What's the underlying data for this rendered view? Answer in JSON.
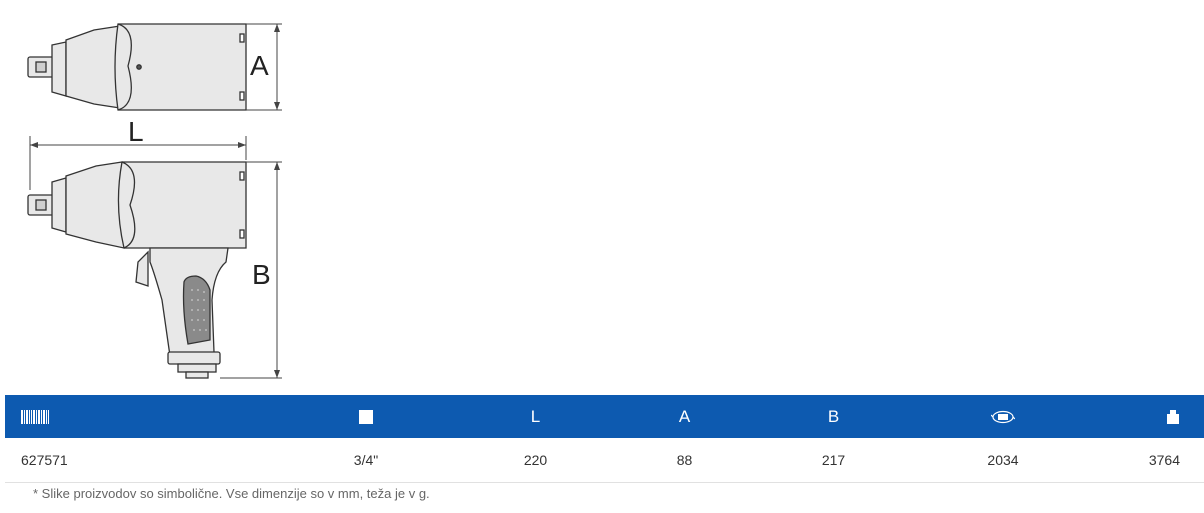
{
  "drawing": {
    "dim_a": "A",
    "dim_l": "L",
    "dim_b": "B"
  },
  "table": {
    "header_icons": [
      "barcode-icon",
      "square-drive-icon",
      "",
      "",
      "",
      "torque-nm-icon",
      "weight-icon"
    ],
    "headers": [
      "",
      "",
      "L",
      "A",
      "B",
      "",
      ""
    ],
    "rows": [
      [
        "627571",
        "3/4\"",
        "220",
        "88",
        "217",
        "2034",
        "3764"
      ]
    ]
  },
  "footnote": "* Slike proizvodov so simbolične. Vse dimenzije so v mm, teža je v g.",
  "colors": {
    "header_bg": "#0d5ab0",
    "header_text": "#ffffff"
  }
}
